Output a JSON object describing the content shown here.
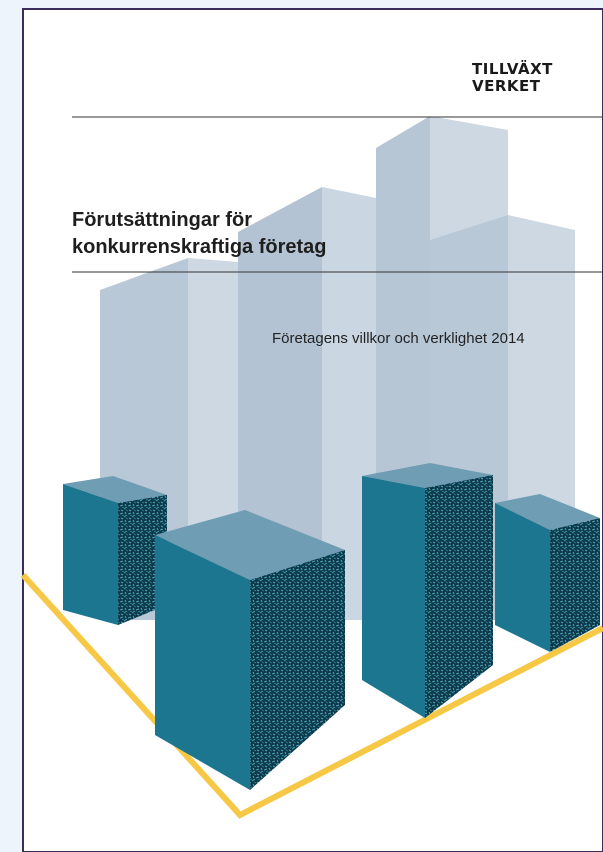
{
  "logo": {
    "line1": "TILLVÄXT",
    "line2": "VERKET"
  },
  "title": {
    "line1": "Förutsättningar för",
    "line2": "konkurrenskraftiga företag"
  },
  "subtitle": "Företagens villkor och verklighet 2014"
}
